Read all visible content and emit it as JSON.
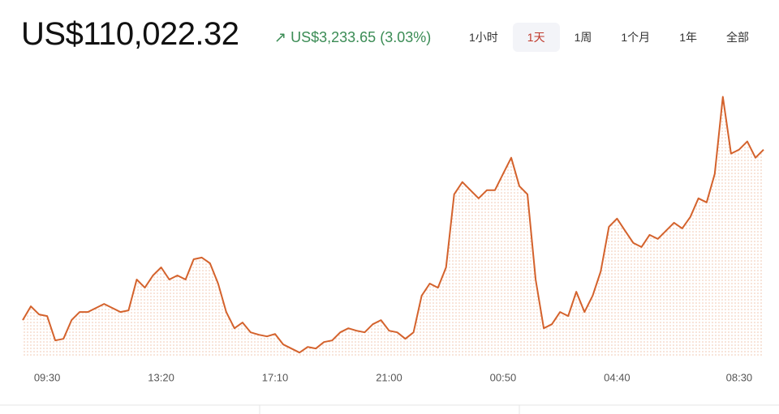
{
  "header": {
    "price": "US$110,022.32",
    "change": "US$3,233.65",
    "change_percent": "(3.03%)"
  },
  "tabs": [
    "1小时",
    "1天",
    "1周",
    "1个月",
    "1年",
    "全部"
  ],
  "selected_tab": 1,
  "chart_data": {
    "type": "line",
    "color": "#d4622c",
    "categories": [
      null,
      null,
      null,
      "09:30",
      null,
      null,
      null,
      null,
      null,
      null,
      null,
      null,
      null,
      null,
      null,
      null,
      null,
      "13:20",
      null,
      null,
      null,
      null,
      null,
      null,
      null,
      null,
      null,
      null,
      null,
      null,
      null,
      "17:10",
      null,
      null,
      null,
      null,
      null,
      null,
      null,
      null,
      null,
      null,
      null,
      null,
      null,
      "21:00",
      null,
      null,
      null,
      null,
      null,
      null,
      null,
      null,
      null,
      null,
      null,
      null,
      null,
      "00:50",
      null,
      null,
      null,
      null,
      null,
      null,
      null,
      null,
      null,
      null,
      null,
      null,
      null,
      "04:40",
      null,
      null,
      null,
      null,
      null,
      null,
      null,
      null,
      null,
      null,
      null,
      null,
      null,
      null,
      "08:30",
      null,
      null,
      null
    ],
    "values": [
      106789,
      107051,
      106897,
      106866,
      106404,
      106435,
      106789,
      106943,
      106943,
      107020,
      107097,
      107020,
      106943,
      106974,
      107559,
      107405,
      107636,
      107790,
      107559,
      107636,
      107559,
      107944,
      107975,
      107867,
      107482,
      106943,
      106635,
      106743,
      106558,
      106512,
      106481,
      106527,
      106327,
      106250,
      106173,
      106281,
      106250,
      106373,
      106404,
      106558,
      106635,
      106589,
      106558,
      106712,
      106789,
      106589,
      106558,
      106435,
      106558,
      107251,
      107482,
      107405,
      107790,
      109176,
      109407,
      109253,
      109099,
      109253,
      109253,
      109561,
      109869,
      109330,
      109176,
      107559,
      106635,
      106712,
      106943,
      106866,
      107328,
      106943,
      107251,
      107713,
      108560,
      108714,
      108483,
      108252,
      108175,
      108406,
      108329,
      108483,
      108637,
      108529,
      108745,
      109099,
      109022,
      109561,
      111024,
      109946,
      110023,
      110177,
      109869,
      110022
    ],
    "ylim": [
      106100,
      111400
    ]
  }
}
